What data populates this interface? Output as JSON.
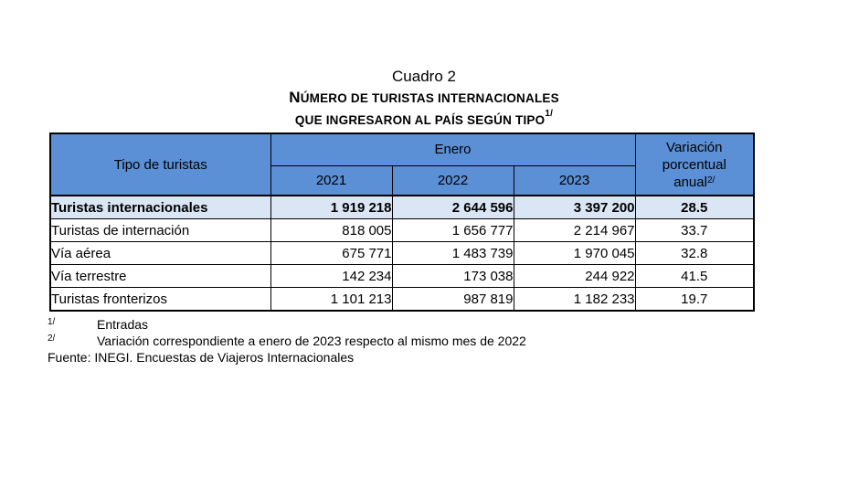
{
  "caption": {
    "line1": "Cuadro 2",
    "line2_first": "N",
    "line2_rest": "ÚMERO DE TURISTAS INTERNACIONALES",
    "line3": "QUE INGRESARON AL PAÍS SEGÚN TIPO",
    "line3_sup": "1/"
  },
  "table": {
    "col_tipo": "Tipo de turistas",
    "col_group": "Enero",
    "years": [
      "2021",
      "2022",
      "2023"
    ],
    "col_var_1": "Variación",
    "col_var_2": "porcentual",
    "col_var_3": "anual",
    "col_var_sup": "2/",
    "rows": [
      {
        "label": "Turistas internacionales",
        "v2021": "1 919 218",
        "v2022": "2 644 596",
        "v2023": "3 397 200",
        "var": "28.5"
      },
      {
        "label": "Turistas de internación",
        "v2021": "818 005",
        "v2022": "1 656 777",
        "v2023": "2 214 967",
        "var": "33.7"
      },
      {
        "label": "Vía aérea",
        "v2021": "675 771",
        "v2022": "1 483 739",
        "v2023": "1 970 045",
        "var": "32.8"
      },
      {
        "label": "Vía terrestre",
        "v2021": "142 234",
        "v2022": "173 038",
        "v2023": "244 922",
        "var": "41.5"
      },
      {
        "label": "Turistas fronterizos",
        "v2021": "1 101 213",
        "v2022": "987 819",
        "v2023": "1 182 233",
        "var": "19.7"
      }
    ]
  },
  "notes": [
    {
      "mark": "1/",
      "text": "Entradas"
    },
    {
      "mark": "2/",
      "text": "Variación correspondiente a enero de 2023 respecto al mismo mes de 2022"
    }
  ],
  "source": "Fuente: INEGI. Encuestas de Viajeros Internacionales"
}
